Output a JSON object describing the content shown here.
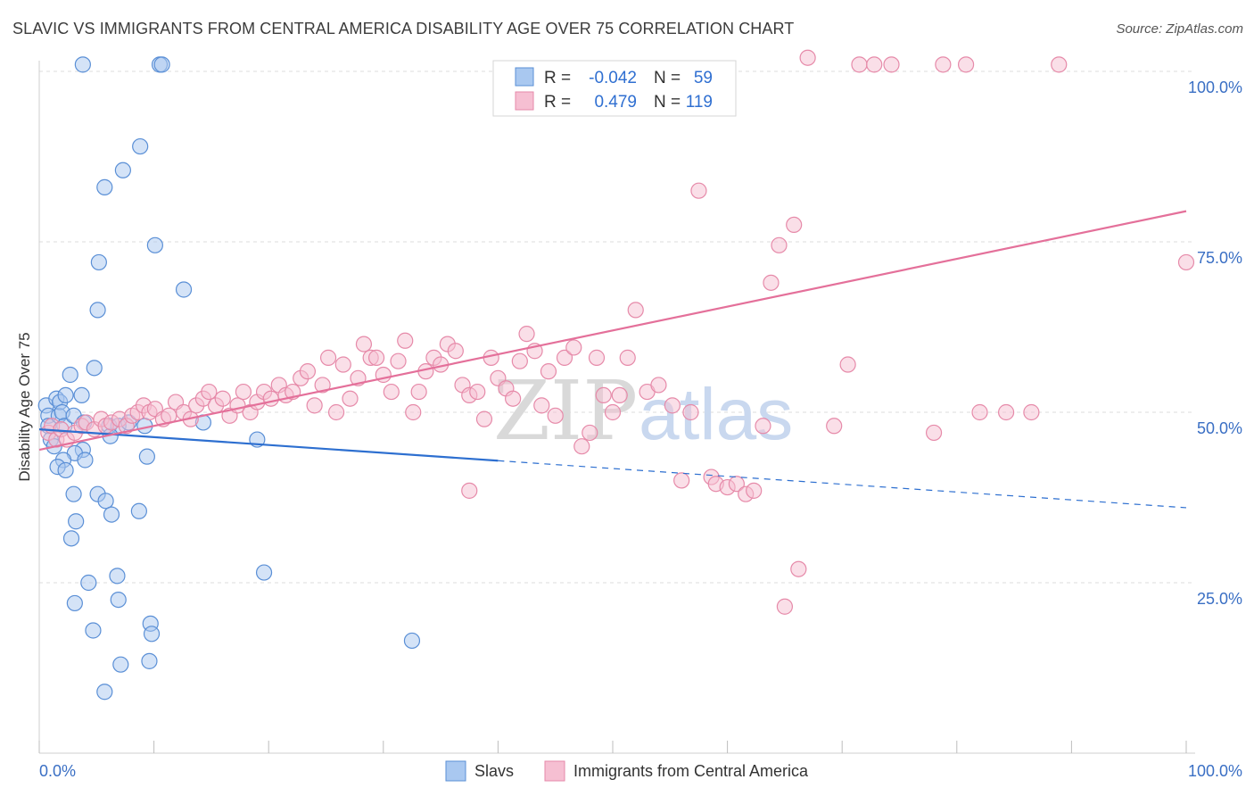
{
  "title": "SLAVIC VS IMMIGRANTS FROM CENTRAL AMERICA DISABILITY AGE OVER 75 CORRELATION CHART",
  "source": "Source: ZipAtlas.com",
  "watermark": {
    "zip": "ZIP",
    "atlas": "atlas"
  },
  "colors": {
    "slavs_fill": "#a9c8f0",
    "slavs_stroke": "#5a8fd6",
    "slavs_line": "#2d6fd0",
    "imm_fill": "#f6bfd2",
    "imm_stroke": "#e68aa9",
    "imm_line": "#e4709a",
    "tick_text": "#3a6fc4",
    "grid": "#dcdcdc"
  },
  "stats_box": {
    "rows": [
      {
        "r_label": "R =",
        "r_value": "-0.042",
        "n_label": "N =",
        "n_value": "59"
      },
      {
        "r_label": "R =",
        "r_value": "0.479",
        "n_label": "N =",
        "n_value": "119"
      }
    ]
  },
  "legend": [
    {
      "label": "Slavs"
    },
    {
      "label": "Immigrants from Central America"
    }
  ],
  "chart_data": {
    "type": "scatter",
    "title": "SLAVIC VS IMMIGRANTS FROM CENTRAL AMERICA DISABILITY AGE OVER 75 CORRELATION CHART",
    "xlabel": "",
    "ylabel": "Disability Age Over 75",
    "xlim": [
      0,
      100
    ],
    "ylim": [
      0,
      100
    ],
    "x_tick_labels": [
      "0.0%",
      "100.0%"
    ],
    "y_ticks": [
      25,
      50,
      75,
      100
    ],
    "y_tick_labels": [
      "25.0%",
      "50.0%",
      "75.0%",
      "100.0%"
    ],
    "grid": true,
    "legend_position": "bottom",
    "series": [
      {
        "name": "Slavs",
        "r": -0.042,
        "n": 59,
        "trend": {
          "x": [
            0,
            100
          ],
          "y": [
            47.5,
            36.0
          ],
          "solid_until": 40
        },
        "points": [
          [
            0.6,
            51
          ],
          [
            0.8,
            49.5
          ],
          [
            0.8,
            48
          ],
          [
            1.0,
            46
          ],
          [
            1.3,
            45
          ],
          [
            1.5,
            52
          ],
          [
            1.7,
            49.5
          ],
          [
            1.8,
            51.5
          ],
          [
            2.0,
            50
          ],
          [
            2.2,
            48
          ],
          [
            3.8,
            101
          ],
          [
            10.5,
            101
          ],
          [
            10.7,
            101
          ],
          [
            8.8,
            89
          ],
          [
            7.3,
            85.5
          ],
          [
            5.7,
            83
          ],
          [
            10.1,
            74.5
          ],
          [
            5.2,
            72
          ],
          [
            12.6,
            68
          ],
          [
            5.1,
            65
          ],
          [
            4.8,
            56.5
          ],
          [
            2.7,
            55.5
          ],
          [
            2.3,
            52.5
          ],
          [
            3.7,
            52.5
          ],
          [
            3.0,
            49.5
          ],
          [
            3.9,
            48.5
          ],
          [
            6.1,
            48
          ],
          [
            6.9,
            48
          ],
          [
            7.8,
            48.5
          ],
          [
            9.2,
            48
          ],
          [
            14.3,
            48.5
          ],
          [
            19.0,
            46
          ],
          [
            6.2,
            46.5
          ],
          [
            3.8,
            44.5
          ],
          [
            3.1,
            44
          ],
          [
            2.1,
            43
          ],
          [
            1.6,
            42
          ],
          [
            2.3,
            41.5
          ],
          [
            4.0,
            43
          ],
          [
            9.4,
            43.5
          ],
          [
            3.0,
            38
          ],
          [
            5.1,
            38
          ],
          [
            5.8,
            37
          ],
          [
            6.3,
            35
          ],
          [
            8.7,
            35.5
          ],
          [
            3.2,
            34
          ],
          [
            2.8,
            31.5
          ],
          [
            6.8,
            26
          ],
          [
            19.6,
            26.5
          ],
          [
            4.3,
            25
          ],
          [
            3.1,
            22
          ],
          [
            6.9,
            22.5
          ],
          [
            9.7,
            19
          ],
          [
            9.8,
            17.5
          ],
          [
            4.7,
            18
          ],
          [
            7.1,
            13
          ],
          [
            9.6,
            13.5
          ],
          [
            32.5,
            16.5
          ],
          [
            5.7,
            9
          ]
        ]
      },
      {
        "name": "Immigrants from Central America",
        "r": 0.479,
        "n": 119,
        "trend": {
          "x": [
            0,
            100
          ],
          "y": [
            44.5,
            79.5
          ]
        },
        "points": [
          [
            0.8,
            47
          ],
          [
            1.1,
            48
          ],
          [
            1.5,
            46
          ],
          [
            1.9,
            47.5
          ],
          [
            2.4,
            46
          ],
          [
            3.1,
            47
          ],
          [
            3.7,
            48
          ],
          [
            4.1,
            48.5
          ],
          [
            4.8,
            47.5
          ],
          [
            5.4,
            49
          ],
          [
            5.8,
            48
          ],
          [
            6.3,
            48.5
          ],
          [
            7.0,
            49
          ],
          [
            7.6,
            48
          ],
          [
            8.1,
            49.5
          ],
          [
            8.6,
            50
          ],
          [
            9.1,
            51
          ],
          [
            9.6,
            50
          ],
          [
            10.1,
            50.5
          ],
          [
            10.8,
            49
          ],
          [
            11.3,
            49.5
          ],
          [
            11.9,
            51.5
          ],
          [
            12.6,
            50
          ],
          [
            13.2,
            49
          ],
          [
            13.7,
            51
          ],
          [
            14.3,
            52
          ],
          [
            14.8,
            53
          ],
          [
            15.4,
            51
          ],
          [
            16.0,
            52
          ],
          [
            16.6,
            49.5
          ],
          [
            17.3,
            51
          ],
          [
            17.8,
            53
          ],
          [
            18.4,
            50
          ],
          [
            19.0,
            51.5
          ],
          [
            19.6,
            53
          ],
          [
            20.2,
            52
          ],
          [
            20.9,
            54
          ],
          [
            21.5,
            52.5
          ],
          [
            22.1,
            53
          ],
          [
            22.8,
            55
          ],
          [
            23.4,
            56
          ],
          [
            24.0,
            51
          ],
          [
            24.7,
            54
          ],
          [
            25.2,
            58
          ],
          [
            25.9,
            50
          ],
          [
            26.5,
            57
          ],
          [
            27.1,
            52
          ],
          [
            27.8,
            55
          ],
          [
            28.3,
            60
          ],
          [
            28.9,
            58
          ],
          [
            29.4,
            58
          ],
          [
            30.0,
            55.5
          ],
          [
            30.7,
            53
          ],
          [
            31.3,
            57.5
          ],
          [
            31.9,
            60.5
          ],
          [
            32.6,
            50
          ],
          [
            33.1,
            53
          ],
          [
            33.7,
            56
          ],
          [
            34.4,
            58
          ],
          [
            35.0,
            57
          ],
          [
            35.6,
            60
          ],
          [
            36.3,
            59
          ],
          [
            36.9,
            54
          ],
          [
            37.5,
            52.5
          ],
          [
            38.2,
            53
          ],
          [
            38.8,
            49
          ],
          [
            39.4,
            58
          ],
          [
            40.0,
            55
          ],
          [
            40.7,
            53.5
          ],
          [
            41.3,
            52
          ],
          [
            41.9,
            57.5
          ],
          [
            42.5,
            61.5
          ],
          [
            43.2,
            59
          ],
          [
            43.8,
            51
          ],
          [
            44.4,
            56
          ],
          [
            45.0,
            49.5
          ],
          [
            45.8,
            58
          ],
          [
            46.6,
            59.5
          ],
          [
            47.3,
            45
          ],
          [
            48.0,
            47
          ],
          [
            48.6,
            58
          ],
          [
            49.2,
            52.5
          ],
          [
            50.0,
            50
          ],
          [
            50.6,
            52.5
          ],
          [
            51.3,
            58
          ],
          [
            52.0,
            65
          ],
          [
            53.0,
            53
          ],
          [
            54.0,
            54
          ],
          [
            55.2,
            51
          ],
          [
            56.0,
            40
          ],
          [
            56.8,
            50
          ],
          [
            57.5,
            82.5
          ],
          [
            58.6,
            40.5
          ],
          [
            59.0,
            39.5
          ],
          [
            60.0,
            39
          ],
          [
            60.8,
            39.5
          ],
          [
            61.6,
            38
          ],
          [
            62.3,
            38.5
          ],
          [
            63.1,
            48
          ],
          [
            63.8,
            69
          ],
          [
            64.5,
            74.5
          ],
          [
            65.8,
            77.5
          ],
          [
            66.2,
            27
          ],
          [
            67.0,
            102
          ],
          [
            69.3,
            48
          ],
          [
            70.5,
            57
          ],
          [
            71.5,
            101
          ],
          [
            72.8,
            101
          ],
          [
            74.3,
            101
          ],
          [
            78.0,
            47
          ],
          [
            78.8,
            101
          ],
          [
            80.8,
            101
          ],
          [
            82.0,
            50
          ],
          [
            84.3,
            50
          ],
          [
            86.5,
            50
          ],
          [
            88.9,
            101
          ],
          [
            100.0,
            72
          ],
          [
            65.0,
            21.5
          ],
          [
            37.5,
            38.5
          ]
        ]
      }
    ]
  }
}
